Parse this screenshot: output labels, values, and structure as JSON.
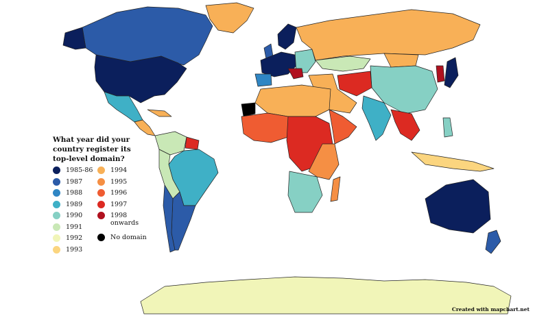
{
  "legend": {
    "title": "What year did your\ncountry register its\ntop-level domain?",
    "left_items": [
      {
        "label": "1985-86",
        "color": "#0b1f5c"
      },
      {
        "label": "1987",
        "color": "#2c5ba8"
      },
      {
        "label": "1988",
        "color": "#2f86c4"
      },
      {
        "label": "1989",
        "color": "#3fb0c6"
      },
      {
        "label": "1990",
        "color": "#86d0c4"
      },
      {
        "label": "1991",
        "color": "#c9e8b6"
      },
      {
        "label": "1992",
        "color": "#f1f5b8"
      },
      {
        "label": "1993",
        "color": "#fbd57f"
      }
    ],
    "right_items": [
      {
        "label": "1994",
        "color": "#f8b057"
      },
      {
        "label": "1995",
        "color": "#f58f44"
      },
      {
        "label": "1996",
        "color": "#ef5c32"
      },
      {
        "label": "1997",
        "color": "#dc2a22"
      },
      {
        "label": "1998\nonwards",
        "color": "#b0111f"
      },
      {
        "label": "No domain",
        "color": "#000000"
      }
    ]
  },
  "credit": "Created with mapchart.net",
  "colors": {
    "background": "#ffffff",
    "border": "#222222"
  }
}
